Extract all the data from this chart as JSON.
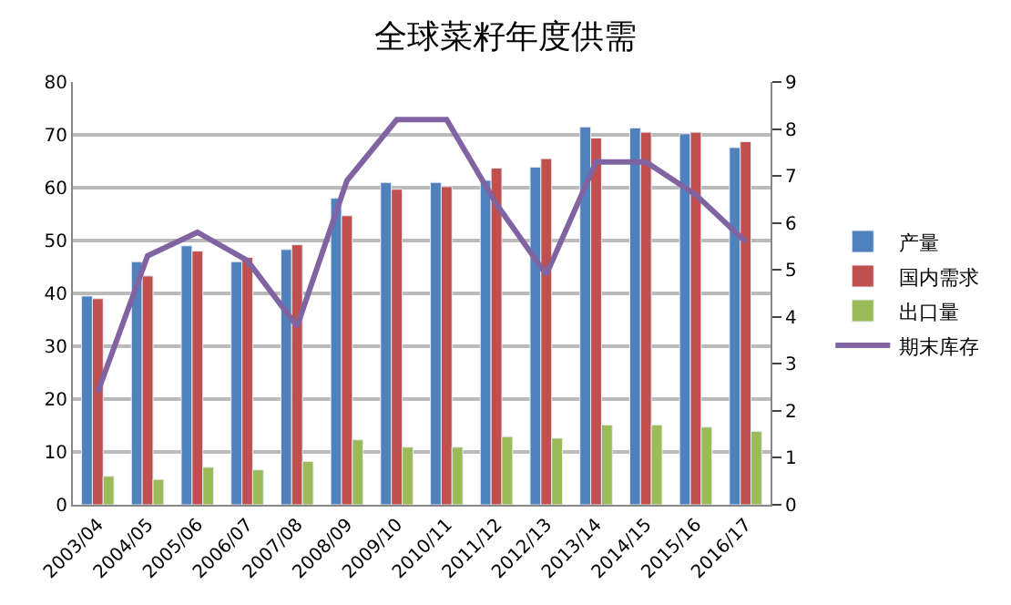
{
  "chart_data": {
    "type": "bar",
    "title": "全球菜籽年度供需",
    "categories": [
      "2003/04",
      "2004/05",
      "2005/06",
      "2006/07",
      "2007/08",
      "2008/09",
      "2009/10",
      "2010/11",
      "2011/12",
      "2012/13",
      "2013/14",
      "2014/15",
      "2015/16",
      "2016/17"
    ],
    "series": [
      {
        "name": "产量",
        "color": "#4f81bd",
        "values": [
          39.5,
          46,
          49,
          46,
          48.3,
          58,
          61,
          61,
          61.4,
          63.9,
          71.5,
          71.3,
          70.2,
          67.6
        ]
      },
      {
        "name": "国内需求",
        "color": "#c0504d",
        "values": [
          39,
          43.3,
          48,
          46.8,
          49.2,
          54.7,
          59.7,
          60.2,
          63.7,
          65.5,
          69.4,
          70.5,
          70.5,
          68.7
        ]
      },
      {
        "name": "出口量",
        "color": "#9bbb59",
        "values": [
          5.4,
          4.8,
          7.1,
          6.6,
          8.2,
          12.3,
          10.9,
          10.9,
          12.9,
          12.6,
          15.1,
          15.1,
          14.7,
          13.9
        ]
      },
      {
        "name": "期末库存",
        "color": "#8064a2",
        "type": "line",
        "axis": "y2",
        "values": [
          2.4,
          5.3,
          5.8,
          5.2,
          3.8,
          6.9,
          8.2,
          8.2,
          6.4,
          4.9,
          7.3,
          7.3,
          6.6,
          5.6
        ]
      }
    ],
    "ylim": [
      0,
      80
    ],
    "yticks": [
      0,
      10,
      20,
      30,
      40,
      50,
      60,
      70,
      80
    ],
    "y2lim": [
      0,
      9
    ],
    "y2ticks": [
      0,
      1,
      2,
      3,
      4,
      5,
      6,
      7,
      8,
      9
    ],
    "grid": "y",
    "legend": "right",
    "marker": "none"
  }
}
